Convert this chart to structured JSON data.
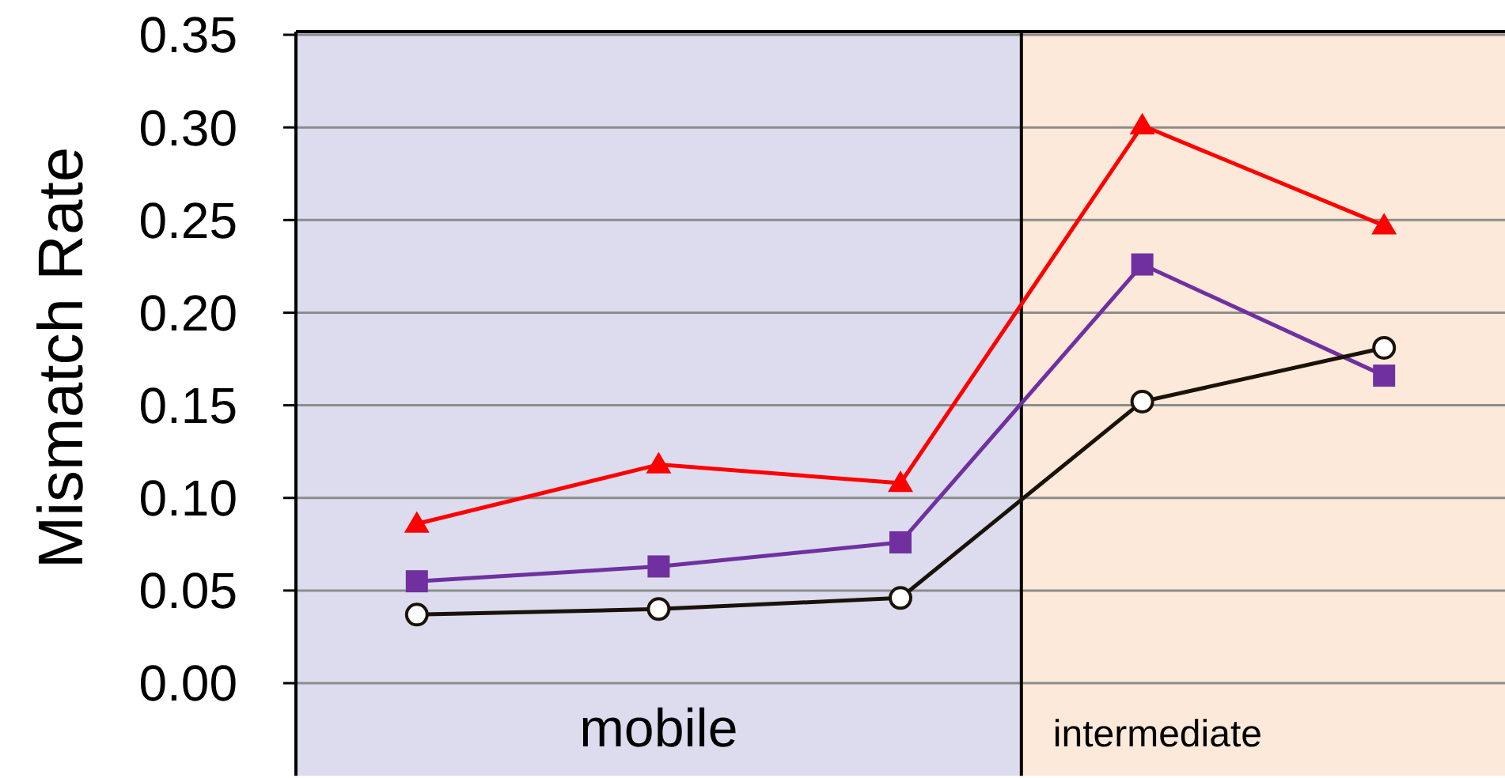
{
  "chart_data": {
    "type": "line",
    "ylabel": "Mismatch Rate",
    "categories": [
      null,
      null,
      null,
      null,
      null
    ],
    "ylim": [
      -0.05,
      0.35
    ],
    "yticks": [
      {
        "value": 0,
        "label": "0.00"
      },
      {
        "value": 0.05,
        "label": "0.05"
      },
      {
        "value": 0.1,
        "label": "0.10"
      },
      {
        "value": 0.15,
        "label": "0.15"
      },
      {
        "value": 0.2,
        "label": "0.20"
      },
      {
        "value": 0.25,
        "label": "0.25"
      },
      {
        "value": 0.3,
        "label": "0.30"
      },
      {
        "value": 0.35,
        "label": "0.35"
      }
    ],
    "tick_labels": "y",
    "grid": "y",
    "line_style": "solid",
    "series": [
      {
        "color": "#ff0000",
        "marker": "triangle",
        "values": [
          0.086,
          0.118,
          0.108,
          0.301,
          0.247
        ]
      },
      {
        "color": "#7030a0",
        "marker": "square",
        "values": [
          0.055,
          0.063,
          0.076,
          0.226,
          0.166
        ]
      },
      {
        "color": "#1a1208",
        "marker": "circle",
        "values": [
          0.037,
          0.04,
          0.046,
          0.152,
          0.181
        ]
      }
    ],
    "annotations": [
      "mobile",
      "intermediate"
    ]
  }
}
